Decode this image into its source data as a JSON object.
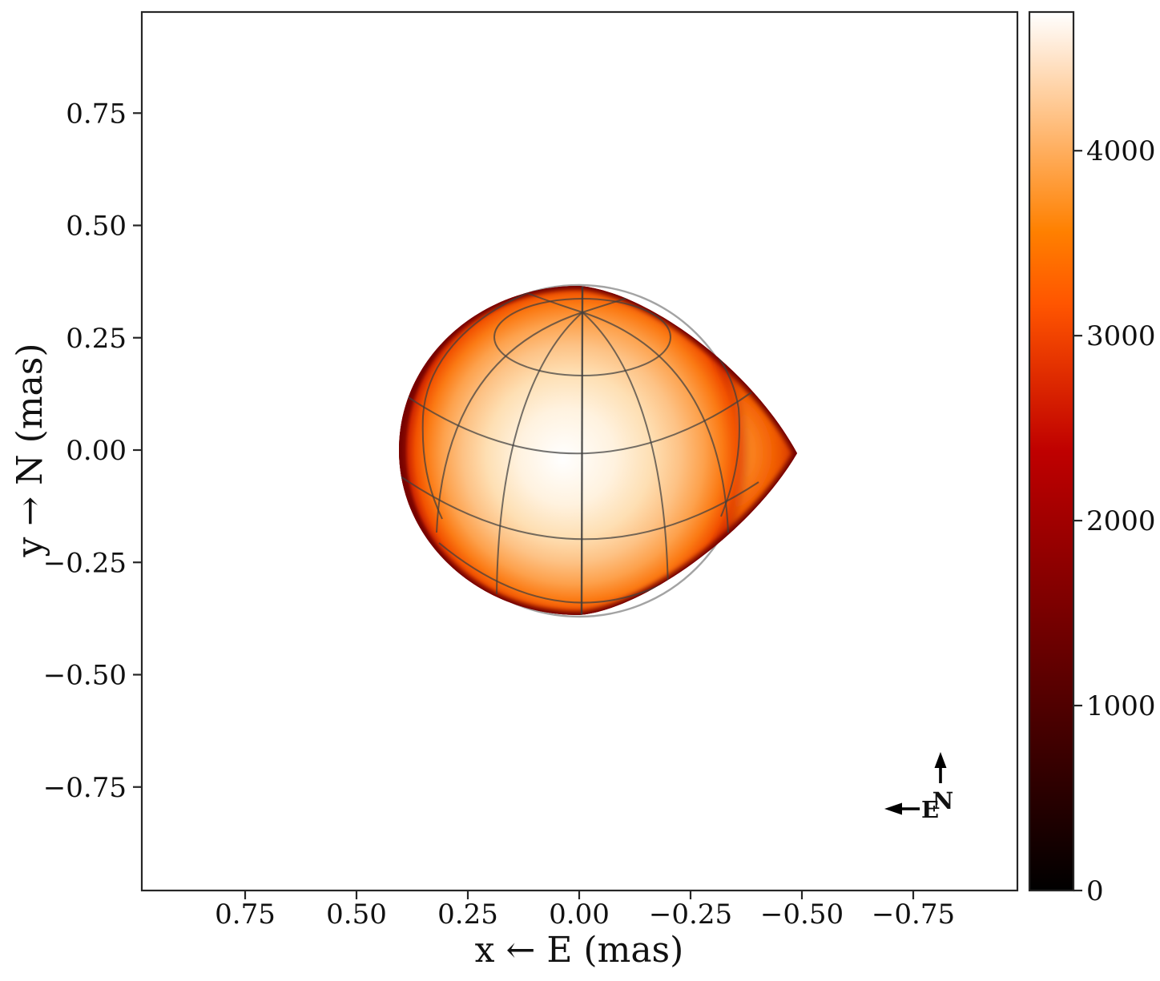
{
  "chart_data": {
    "type": "heatmap",
    "subtype": "rendered-3d-stellar-surface",
    "title": "",
    "xlabel": "x ← E (mas)",
    "ylabel": "y → N (mas)",
    "x_axis": {
      "inverted": true,
      "lim": [
        0.98,
        -0.98
      ],
      "tick_values": [
        0.75,
        0.5,
        0.25,
        0.0,
        -0.25,
        -0.5,
        -0.75
      ],
      "tick_labels": [
        "0.75",
        "0.50",
        "0.25",
        "0.00",
        "−0.25",
        "−0.50",
        "−0.75"
      ]
    },
    "y_axis": {
      "inverted": false,
      "lim": [
        -0.98,
        0.98
      ],
      "tick_values": [
        0.75,
        0.5,
        0.25,
        0.0,
        -0.25,
        -0.5,
        -0.75
      ],
      "tick_labels": [
        "0.75",
        "0.50",
        "0.25",
        "0.00",
        "−0.25",
        "−0.50",
        "−0.75"
      ]
    },
    "colorbar": {
      "vmin": 0,
      "vmax": 4750,
      "tick_values": [
        0,
        1000,
        2000,
        3000,
        4000
      ],
      "tick_labels": [
        "0",
        "1000",
        "2000",
        "3000",
        "4000"
      ],
      "colormap": "gist_heat (white → orange → red → dark red → black, top to bottom)",
      "stops": [
        {
          "offset": 0.0,
          "color": "#FFFFFF"
        },
        {
          "offset": 0.05,
          "color": "#FFE5CC"
        },
        {
          "offset": 0.1,
          "color": "#FFCC99"
        },
        {
          "offset": 0.15,
          "color": "#FFB266"
        },
        {
          "offset": 0.2,
          "color": "#FF9933"
        },
        {
          "offset": 0.25,
          "color": "#FF8000"
        },
        {
          "offset": 0.333,
          "color": "#FF5500"
        },
        {
          "offset": 0.4,
          "color": "#E53300"
        },
        {
          "offset": 0.5,
          "color": "#BF0000"
        },
        {
          "offset": 0.6,
          "color": "#990000"
        },
        {
          "offset": 0.7,
          "color": "#730000"
        },
        {
          "offset": 0.8,
          "color": "#4C0000"
        },
        {
          "offset": 0.9,
          "color": "#260000"
        },
        {
          "offset": 1.0,
          "color": "#000000"
        }
      ]
    },
    "surface": {
      "description": "Tidally distorted star (Roche-lobe-like) rendered with lat-long wireframe; pointed lobe toward negative x (west); brightest (~4750) at disk centre, darker red toward the limb",
      "x_extent_mas": [
        0.405,
        -0.49
      ],
      "y_extent_mas": [
        -0.37,
        0.365
      ],
      "tip_mas": {
        "x": -0.49,
        "y": 0.0
      },
      "pole_mas": {
        "x": 0.01,
        "y": 0.31
      },
      "peak_value": 4750,
      "limb_value": 2000,
      "reference_circle_radius_mas": 0.37
    },
    "grid": false,
    "legend": false,
    "compass": {
      "north_label": "N",
      "east_label": "E",
      "north_direction": "up",
      "east_direction": "left"
    }
  }
}
